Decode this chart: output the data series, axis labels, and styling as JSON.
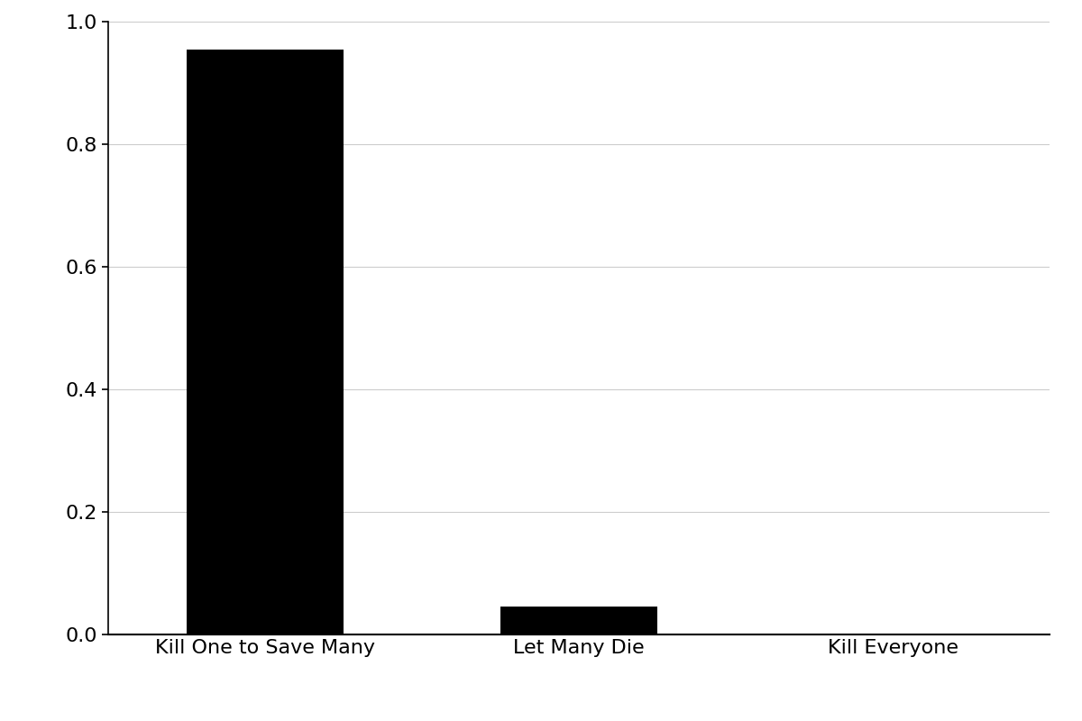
{
  "categories": [
    "Kill One to Save Many",
    "Let Many Die",
    "Kill Everyone"
  ],
  "values": [
    0.955,
    0.045,
    0.001
  ],
  "bar_color": "#000000",
  "ylim": [
    0,
    1.0
  ],
  "yticks": [
    0.0,
    0.2,
    0.4,
    0.6,
    0.8,
    1.0
  ],
  "background_color": "#ffffff",
  "grid_color": "#cccccc",
  "bar_width": 0.5,
  "figsize": [
    12,
    8
  ],
  "dpi": 100,
  "tick_label_fontsize": 16,
  "xlabel_fontsize": 16
}
